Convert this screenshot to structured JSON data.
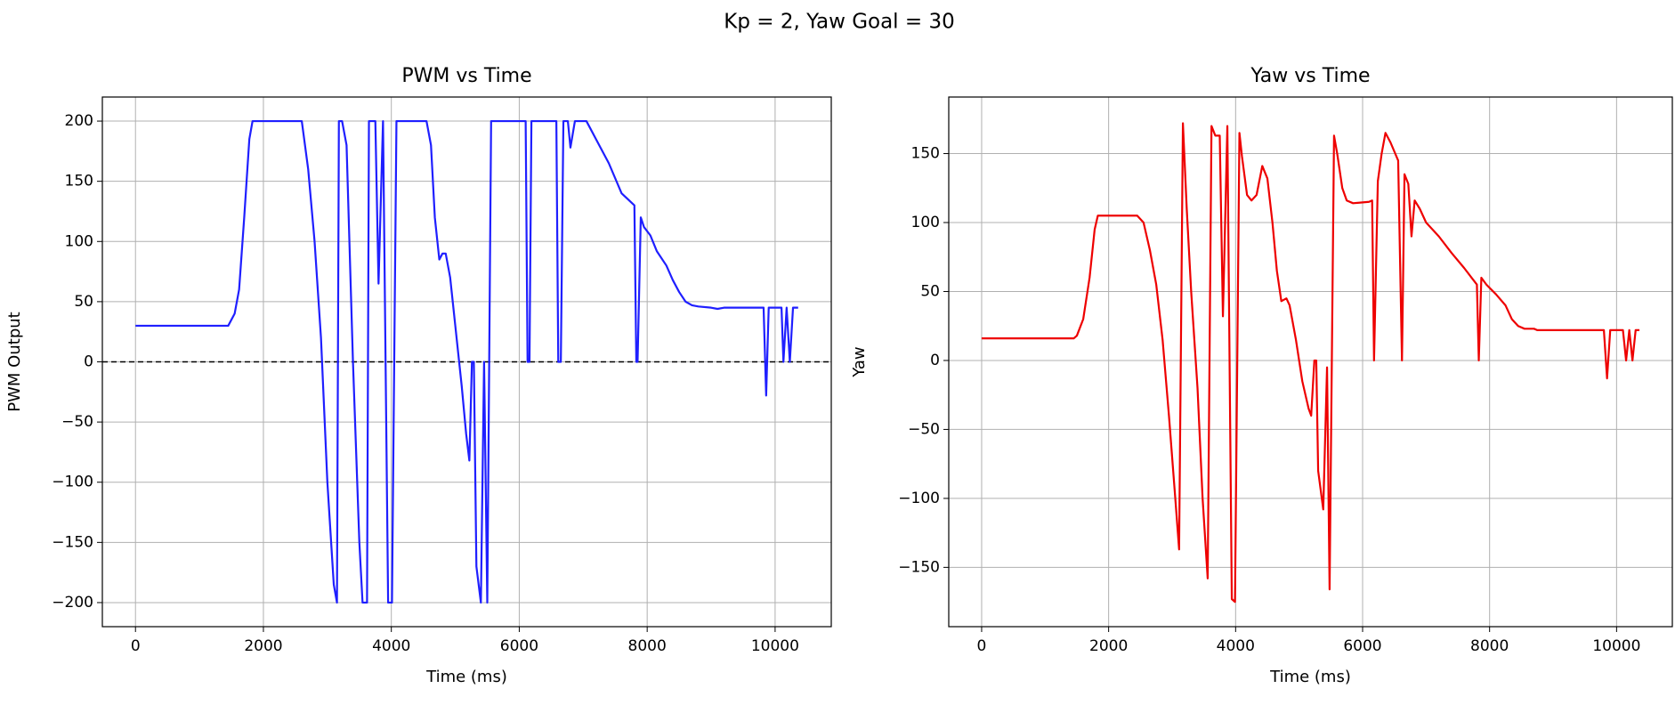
{
  "title": "Kp = 2, Yaw Goal = 30",
  "chart_data": [
    {
      "type": "line",
      "title": "PWM vs Time",
      "x_label": "Time (ms)",
      "y_label": "PWM Output",
      "xlim": [
        -518,
        10878
      ],
      "ylim": [
        -220,
        220
      ],
      "xticks": [
        0,
        2000,
        4000,
        6000,
        8000,
        10000
      ],
      "yticks": [
        {
          "value": -200,
          "label": "−200"
        },
        {
          "value": -150,
          "label": "−150"
        },
        {
          "value": -100,
          "label": "−100"
        },
        {
          "value": -50,
          "label": "−50"
        },
        0,
        50,
        100,
        150,
        200
      ],
      "grid": true,
      "reference_line": 0,
      "series": [
        {
          "name": "PWM",
          "color": "#1f1fff",
          "x": [
            0,
            1450,
            1550,
            1620,
            1700,
            1780,
            1830,
            2600,
            2700,
            2800,
            2900,
            3000,
            3100,
            3150,
            3180,
            3230,
            3300,
            3400,
            3500,
            3550,
            3620,
            3650,
            3750,
            3800,
            3870,
            3950,
            4010,
            4080,
            4550,
            4620,
            4680,
            4750,
            4800,
            4850,
            4920,
            5000,
            5100,
            5170,
            5220,
            5260,
            5290,
            5330,
            5400,
            5450,
            5500,
            5560,
            6100,
            6130,
            6160,
            6190,
            6580,
            6610,
            6650,
            6690,
            6760,
            6800,
            6870,
            7050,
            7100,
            7200,
            7400,
            7600,
            7800,
            7830,
            7850,
            7900,
            7950,
            8050,
            8150,
            8300,
            8400,
            8500,
            8600,
            8700,
            8800,
            9000,
            9100,
            9200,
            9780,
            9820,
            9860,
            9900,
            10100,
            10130,
            10180,
            10230,
            10280,
            10360
          ],
          "values": [
            30,
            30,
            40,
            60,
            120,
            185,
            200,
            200,
            160,
            100,
            20,
            -100,
            -185,
            -200,
            200,
            200,
            180,
            0,
            -150,
            -200,
            -200,
            200,
            200,
            65,
            200,
            -200,
            -200,
            200,
            200,
            180,
            120,
            85,
            90,
            90,
            70,
            30,
            -20,
            -60,
            -82,
            0,
            0,
            -170,
            -200,
            0,
            -200,
            200,
            200,
            0,
            0,
            200,
            200,
            0,
            0,
            200,
            200,
            178,
            200,
            200,
            195,
            185,
            165,
            140,
            130,
            0,
            0,
            120,
            112,
            105,
            92,
            80,
            68,
            58,
            50,
            47,
            46,
            45,
            44,
            45,
            45,
            45,
            -28,
            45,
            45,
            0,
            45,
            0,
            45,
            45
          ]
        }
      ]
    },
    {
      "type": "line",
      "title": "Yaw vs Time",
      "x_label": "Time (ms)",
      "y_label": "Yaw",
      "xlim": [
        -518,
        10878
      ],
      "ylim": [
        -193,
        191
      ],
      "xticks": [
        0,
        2000,
        4000,
        6000,
        8000,
        10000
      ],
      "yticks": [
        {
          "value": -150,
          "label": "−150"
        },
        {
          "value": -100,
          "label": "−100"
        },
        {
          "value": -50,
          "label": "−50"
        },
        0,
        50,
        100,
        150
      ],
      "grid": true,
      "series": [
        {
          "name": "Yaw",
          "color": "#ee0000",
          "x": [
            0,
            1450,
            1500,
            1600,
            1700,
            1780,
            1830,
            2450,
            2550,
            2650,
            2750,
            2850,
            2950,
            3050,
            3110,
            3170,
            3230,
            3300,
            3400,
            3480,
            3560,
            3620,
            3680,
            3750,
            3800,
            3870,
            3940,
            3990,
            4060,
            4100,
            4180,
            4250,
            4330,
            4420,
            4500,
            4580,
            4650,
            4720,
            4800,
            4850,
            4950,
            5050,
            5150,
            5190,
            5240,
            5270,
            5300,
            5380,
            5440,
            5480,
            5550,
            5600,
            5680,
            5750,
            5850,
            6100,
            6150,
            6180,
            6240,
            6300,
            6360,
            6440,
            6560,
            6620,
            6660,
            6720,
            6770,
            6820,
            6900,
            7000,
            7200,
            7400,
            7600,
            7800,
            7830,
            7870,
            7950,
            8100,
            8250,
            8350,
            8450,
            8550,
            8700,
            8750,
            9800,
            9850,
            9900,
            10100,
            10150,
            10200,
            10250,
            10300,
            10360
          ],
          "values": [
            16,
            16,
            18,
            30,
            60,
            95,
            105,
            105,
            100,
            80,
            55,
            15,
            -40,
            -100,
            -137,
            172,
            110,
            50,
            -20,
            -100,
            -158,
            170,
            163,
            163,
            32,
            170,
            -173,
            -175,
            165,
            148,
            120,
            116,
            120,
            141,
            132,
            100,
            65,
            43,
            45,
            40,
            15,
            -15,
            -35,
            -40,
            0,
            0,
            -80,
            -108,
            -5,
            -166,
            163,
            150,
            125,
            116,
            114,
            115,
            116,
            0,
            130,
            150,
            165,
            158,
            145,
            0,
            135,
            128,
            90,
            116,
            110,
            100,
            90,
            78,
            67,
            55,
            0,
            60,
            55,
            48,
            40,
            30,
            25,
            23,
            23,
            22,
            22,
            -13,
            22,
            22,
            0,
            22,
            0,
            22,
            22
          ]
        }
      ]
    }
  ]
}
